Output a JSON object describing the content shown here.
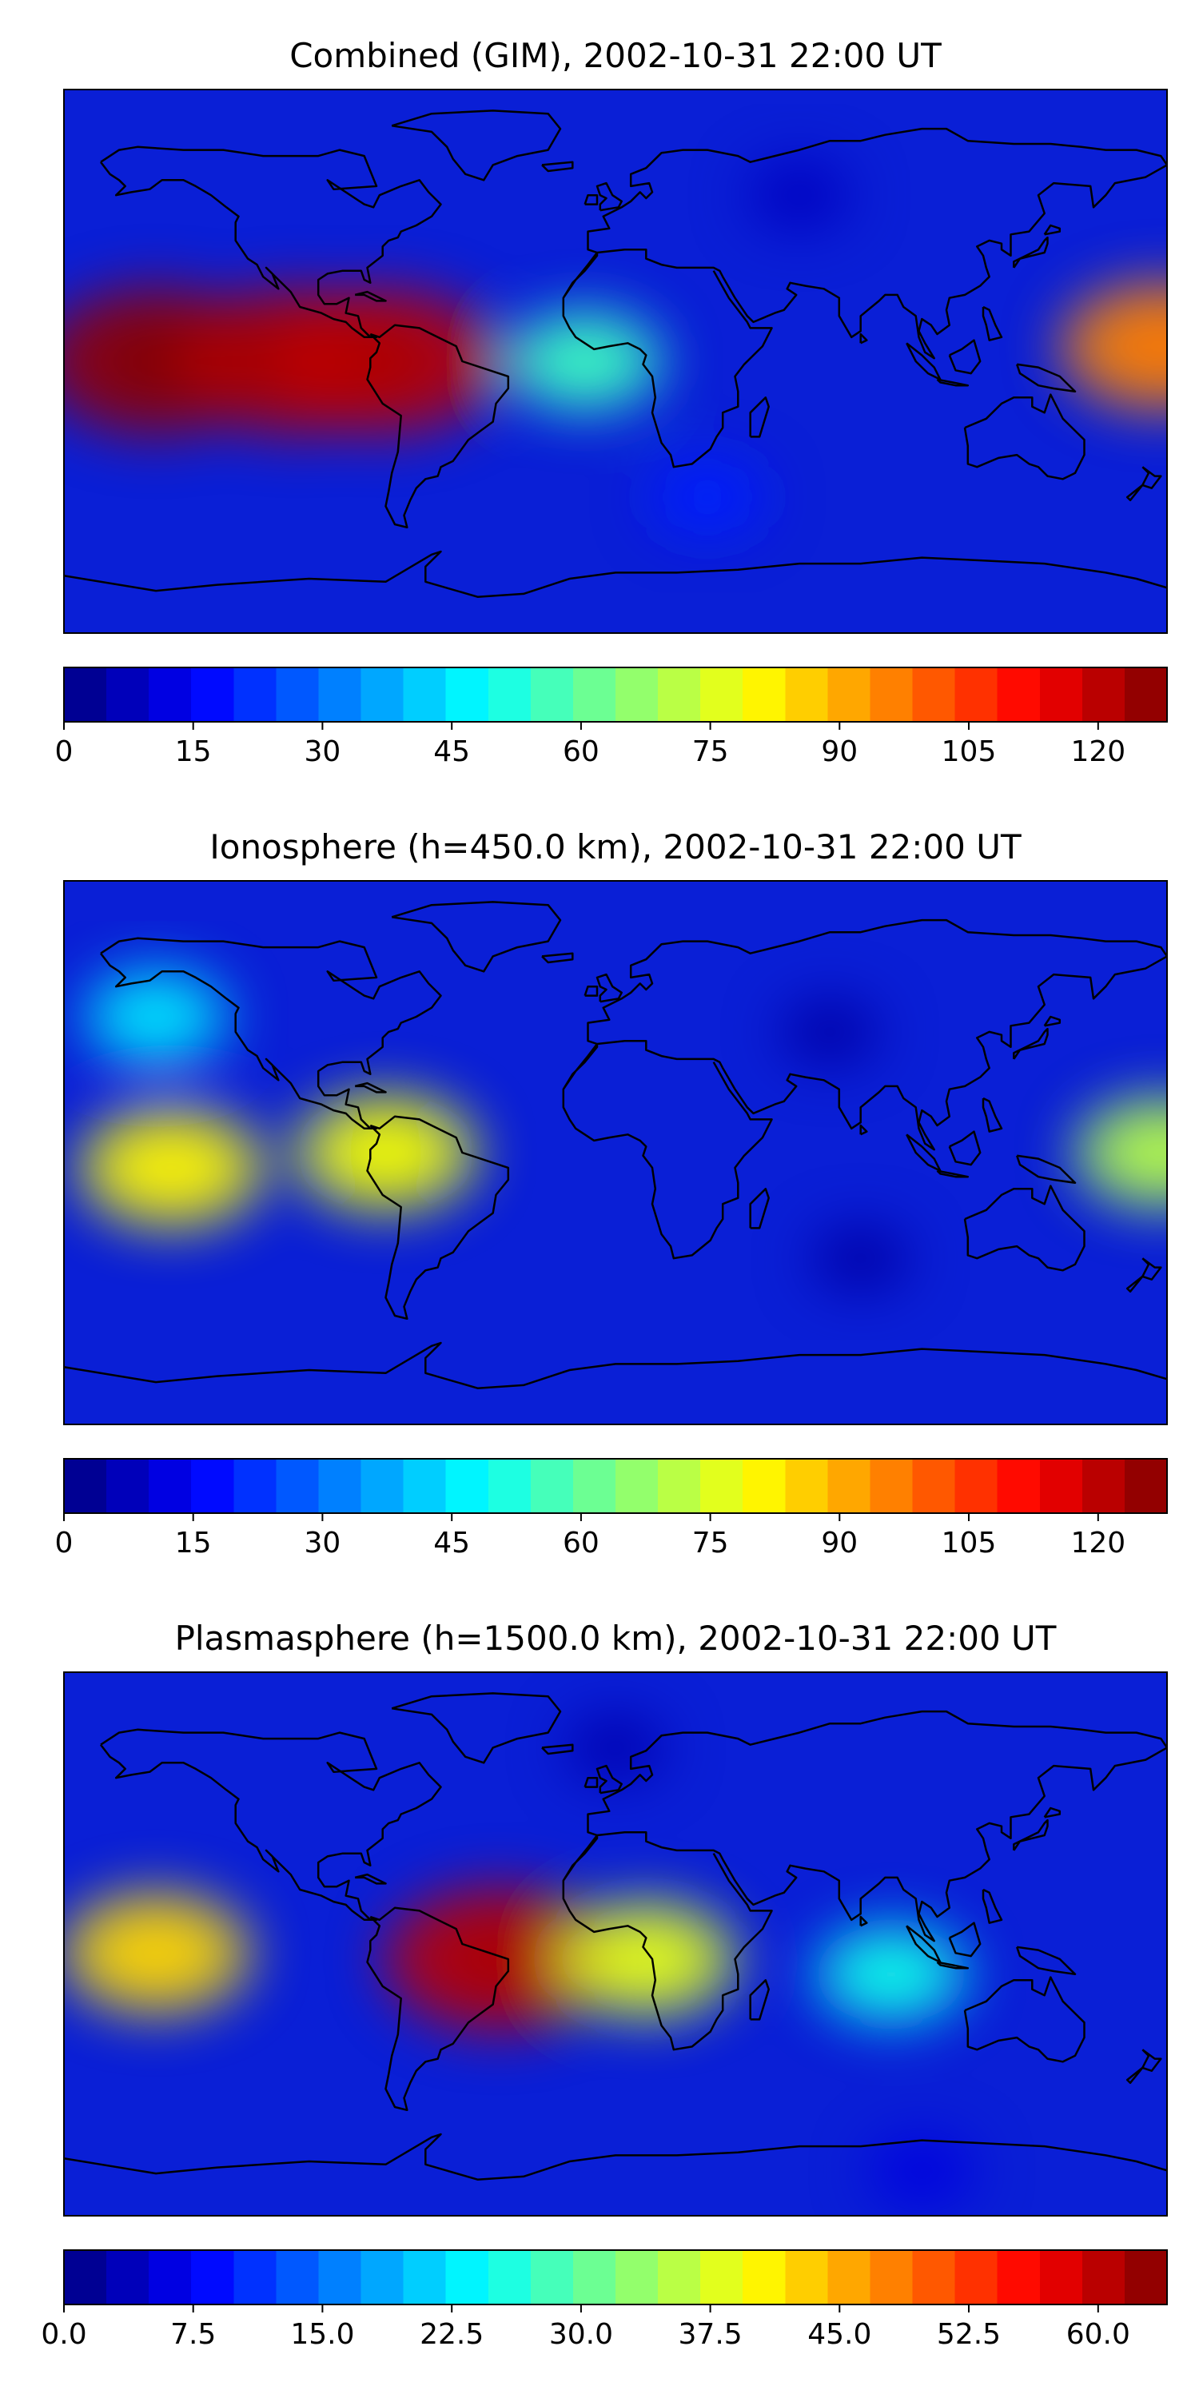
{
  "chart_data": [
    {
      "type": "heatmap",
      "title": "Combined (GIM), 2002-10-31 22:00 UT",
      "map": "world-coastlines",
      "colormap": "jet",
      "colorbar": {
        "min": 0,
        "max": 128,
        "levels": 26,
        "ticks": [
          0,
          15,
          30,
          45,
          60,
          75,
          90,
          105,
          120
        ],
        "tick_labels": [
          "0",
          "15",
          "30",
          "45",
          "60",
          "75",
          "90",
          "105",
          "120"
        ]
      },
      "features": [
        {
          "name": "pacific-equatorial-max",
          "lon": -150,
          "lat": 0,
          "value": 125
        },
        {
          "name": "pacific-equatorial-max-2",
          "lon": -105,
          "lat": 0,
          "value": 122
        },
        {
          "name": "andes-peak",
          "lon": -75,
          "lat": 0,
          "value": 120
        },
        {
          "name": "west-pacific-edge",
          "lon": 178,
          "lat": 5,
          "value": 95
        },
        {
          "name": "atlantic-band",
          "lon": -10,
          "lat": 0,
          "value": 55
        },
        {
          "name": "eurasia-min",
          "lon": 60,
          "lat": 55,
          "value": 8
        },
        {
          "name": "south-ocean",
          "lon": 30,
          "lat": -45,
          "value": 20
        }
      ]
    },
    {
      "type": "heatmap",
      "title": "Ionosphere  (h=450.0 km), 2002-10-31 22:00 UT",
      "map": "world-coastlines",
      "colormap": "jet",
      "colorbar": {
        "min": 0,
        "max": 128,
        "levels": 26,
        "ticks": [
          0,
          15,
          30,
          45,
          60,
          75,
          90,
          105,
          120
        ],
        "tick_labels": [
          "0",
          "15",
          "30",
          "45",
          "60",
          "75",
          "90",
          "105",
          "120"
        ]
      },
      "features": [
        {
          "name": "pacific-max",
          "lon": -145,
          "lat": -5,
          "value": 80
        },
        {
          "name": "andes-max",
          "lon": -75,
          "lat": 0,
          "value": 78
        },
        {
          "name": "west-pacific-edge",
          "lon": 178,
          "lat": 0,
          "value": 70
        },
        {
          "name": "north-pacific",
          "lon": -150,
          "lat": 45,
          "value": 45
        },
        {
          "name": "eurasia-min",
          "lon": 70,
          "lat": 40,
          "value": 5
        },
        {
          "name": "south-indian-min",
          "lon": 80,
          "lat": -35,
          "value": 5
        }
      ]
    },
    {
      "type": "heatmap",
      "title": "Plasmasphere (h=1500.0 km), 2002-10-31 22:00 UT",
      "map": "world-coastlines",
      "colormap": "jet",
      "colorbar": {
        "min": 0,
        "max": 64,
        "levels": 26,
        "ticks": [
          0.0,
          7.5,
          15.0,
          22.5,
          30.0,
          37.5,
          45.0,
          52.5,
          60.0
        ],
        "tick_labels": [
          "0.0",
          "7.5",
          "15.0",
          "22.5",
          "30.0",
          "37.5",
          "45.0",
          "52.5",
          "60.0"
        ]
      },
      "features": [
        {
          "name": "brazil-atlantic-max",
          "lon": -38,
          "lat": -5,
          "value": 60
        },
        {
          "name": "pacific-yellow",
          "lon": -150,
          "lat": -3,
          "value": 42
        },
        {
          "name": "africa-band",
          "lon": 10,
          "lat": -5,
          "value": 38
        },
        {
          "name": "indian-ocean",
          "lon": 90,
          "lat": -10,
          "value": 25
        },
        {
          "name": "north-min",
          "lon": 0,
          "lat": 65,
          "value": 3
        },
        {
          "name": "south-min",
          "lon": 100,
          "lat": -75,
          "value": 6
        }
      ]
    }
  ]
}
